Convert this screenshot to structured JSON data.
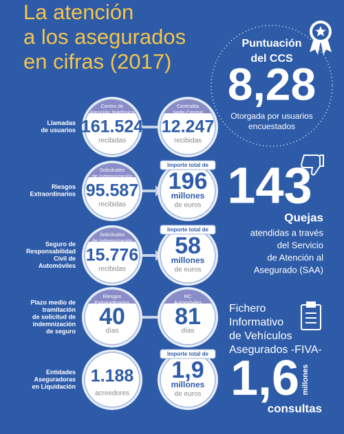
{
  "title": [
    "La atención",
    "a los asegurados",
    "en cifras (2017)"
  ],
  "score": {
    "label": [
      "Puntuación",
      "del CCS"
    ],
    "value": "8,28",
    "caption": [
      "Otorgada por usuarios",
      "encuestados"
    ]
  },
  "rows": [
    {
      "label": [
        "Llamadas",
        "de usuarios"
      ],
      "items": [
        {
          "header": [
            "Centro de",
            "Atención Telefónica"
          ],
          "value": "161.524",
          "unit": [
            "recibidas"
          ]
        },
        {
          "header": [
            "Centralita",
            "Sede Central"
          ],
          "value": "12.247",
          "unit": [
            "recibidas"
          ]
        }
      ]
    },
    {
      "label": [
        "Riesgos",
        "Extraordinarios"
      ],
      "items": [
        {
          "header": [
            "Solicitudes",
            "de Indemnización"
          ],
          "value": "95.587",
          "unit": [
            "recibidas"
          ]
        },
        {
          "tag": "Importe total de",
          "value": "196",
          "unit": [
            "millones",
            "de euros"
          ]
        }
      ]
    },
    {
      "label": [
        "Seguro de",
        "Responsabilidad",
        "Civil de",
        "Automóviles"
      ],
      "items": [
        {
          "header": [
            "Solicitudes",
            "de Indemnización"
          ],
          "value": "15.776",
          "unit": [
            "recibidas"
          ]
        },
        {
          "tag": "Importe total de",
          "value": "58",
          "unit": [
            "millones",
            "de euros"
          ]
        }
      ]
    },
    {
      "label": [
        "Plazo medio de",
        "tramitación",
        "de solicitud de",
        "indemnización",
        "de seguro"
      ],
      "items": [
        {
          "header": [
            "Riesgos",
            "Extraordinarios"
          ],
          "value": "40",
          "unit": [
            "días"
          ]
        },
        {
          "header": [
            "RC",
            "Automóviles"
          ],
          "value": "81",
          "unit": [
            "días"
          ]
        }
      ]
    },
    {
      "label": [
        "Entidades",
        "Aseguradoras",
        "en Liquidación"
      ],
      "items": [
        {
          "value": "1.188",
          "unit": [
            "acreedores"
          ]
        },
        {
          "tag": "Importe total de",
          "value": "1,9",
          "unit": [
            "millones",
            "de euros"
          ]
        }
      ]
    }
  ],
  "complaints": {
    "value": "143",
    "label": "Quejas",
    "text": [
      "atendidas a través",
      "del Servicio",
      "de Atención al",
      "Asegurado (SAA)"
    ]
  },
  "fiva": {
    "title": [
      "Fichero",
      "Informativo",
      "de Vehículos",
      "Asegurados -FIVA-"
    ],
    "value": "1,6",
    "unit": "millones",
    "label": "consultas"
  }
}
